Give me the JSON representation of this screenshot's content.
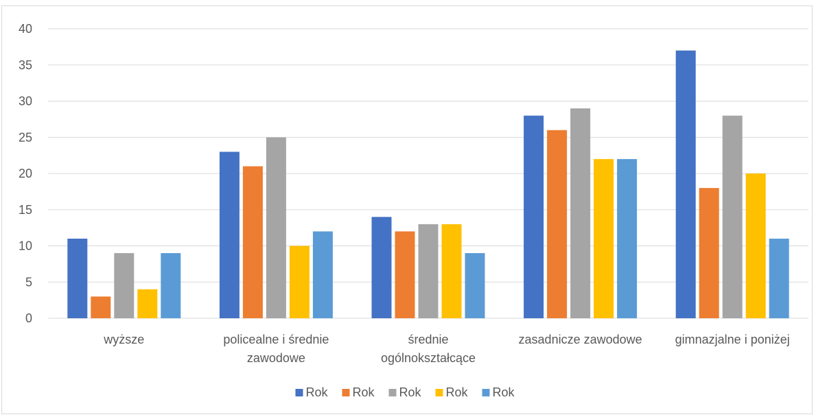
{
  "chart_data": {
    "type": "bar",
    "categories": [
      "wyższe",
      "policealne i średnie zawodowe",
      "średnie ogólnokształcące",
      "zasadnicze zawodowe",
      "gimnazjalne i poniżej"
    ],
    "category_lines": [
      [
        "wyższe"
      ],
      [
        "policealne i średnie",
        "zawodowe"
      ],
      [
        "średnie",
        "ogólnokształcące"
      ],
      [
        "zasadnicze zawodowe"
      ],
      [
        "gimnazjalne i poniżej"
      ]
    ],
    "series": [
      {
        "name": "Rok",
        "color": "#4472c4",
        "values": [
          11,
          23,
          14,
          28,
          37
        ]
      },
      {
        "name": "Rok",
        "color": "#ed7d31",
        "values": [
          3,
          21,
          12,
          26,
          18
        ]
      },
      {
        "name": "Rok",
        "color": "#a5a5a5",
        "values": [
          9,
          25,
          13,
          29,
          28
        ]
      },
      {
        "name": "Rok",
        "color": "#ffc000",
        "values": [
          4,
          10,
          13,
          22,
          20
        ]
      },
      {
        "name": "Rok",
        "color": "#5b9bd5",
        "values": [
          9,
          12,
          9,
          22,
          11
        ]
      }
    ],
    "ylim": [
      0,
      40
    ],
    "yticks": [
      0,
      5,
      10,
      15,
      20,
      25,
      30,
      35,
      40
    ],
    "grid": true,
    "legend": "bottom",
    "gridline_color": "#d9d9d9"
  }
}
